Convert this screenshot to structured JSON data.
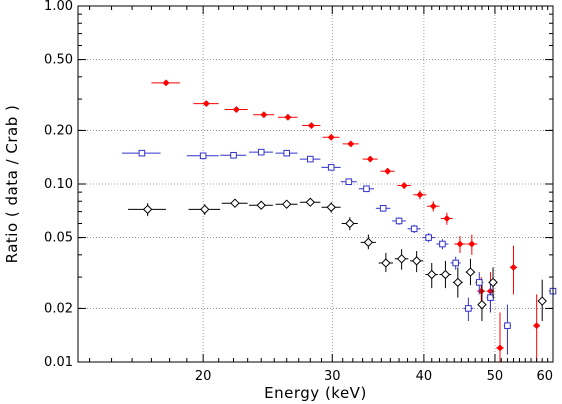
{
  "chart_data": {
    "type": "scatter",
    "xlabel": "Energy (keV)",
    "ylabel": "Ratio ( data / Crab )",
    "x_scale": "log",
    "y_scale": "log",
    "xlim": [
      13.5,
      60
    ],
    "ylim": [
      0.01,
      1.0
    ],
    "grid": true,
    "x_ticks": [
      {
        "value": 20,
        "label": "20"
      },
      {
        "value": 30,
        "label": "30"
      },
      {
        "value": 40,
        "label": "40"
      },
      {
        "value": 50,
        "label": "50"
      },
      {
        "value": 60,
        "label": "60"
      }
    ],
    "y_ticks": [
      {
        "value": 0.01,
        "label": "0.01"
      },
      {
        "value": 0.02,
        "label": "0.02"
      },
      {
        "value": 0.05,
        "label": "0.05"
      },
      {
        "value": 0.1,
        "label": "0.10"
      },
      {
        "value": 0.2,
        "label": "0.20"
      },
      {
        "value": 0.5,
        "label": "0.50"
      },
      {
        "value": 1.0,
        "label": "1.00"
      }
    ],
    "series": [
      {
        "marker": "filled-diamond",
        "color": "#ff0000",
        "points": [
          {
            "x": 17.8,
            "y": 0.37,
            "xerr": 0.8,
            "ylo": 0.36,
            "yhi": 0.38
          },
          {
            "x": 20.2,
            "y": 0.283,
            "xerr": 0.8,
            "ylo": 0.275,
            "yhi": 0.291
          },
          {
            "x": 22.2,
            "y": 0.262,
            "xerr": 0.8,
            "ylo": 0.255,
            "yhi": 0.269
          },
          {
            "x": 24.2,
            "y": 0.245,
            "xerr": 0.8,
            "ylo": 0.238,
            "yhi": 0.252
          },
          {
            "x": 26.1,
            "y": 0.237,
            "xerr": 0.8,
            "ylo": 0.23,
            "yhi": 0.244
          },
          {
            "x": 28.1,
            "y": 0.213,
            "xerr": 0.8,
            "ylo": 0.206,
            "yhi": 0.22
          },
          {
            "x": 29.9,
            "y": 0.183,
            "xerr": 0.8,
            "ylo": 0.177,
            "yhi": 0.189
          },
          {
            "x": 31.8,
            "y": 0.168,
            "xerr": 0.8,
            "ylo": 0.162,
            "yhi": 0.174
          },
          {
            "x": 33.8,
            "y": 0.138,
            "xerr": 0.8,
            "ylo": 0.133,
            "yhi": 0.143
          },
          {
            "x": 35.7,
            "y": 0.118,
            "xerr": 0.8,
            "ylo": 0.113,
            "yhi": 0.123
          },
          {
            "x": 37.6,
            "y": 0.098,
            "xerr": 0.8,
            "ylo": 0.094,
            "yhi": 0.102
          },
          {
            "x": 39.5,
            "y": 0.087,
            "xerr": 0.8,
            "ylo": 0.082,
            "yhi": 0.092
          },
          {
            "x": 41.2,
            "y": 0.075,
            "xerr": 0.8,
            "ylo": 0.07,
            "yhi": 0.08
          },
          {
            "x": 43.0,
            "y": 0.064,
            "xerr": 0.8,
            "ylo": 0.059,
            "yhi": 0.069
          },
          {
            "x": 44.8,
            "y": 0.046,
            "xerr": 0.8,
            "ylo": 0.041,
            "yhi": 0.051
          },
          {
            "x": 46.5,
            "y": 0.046,
            "xerr": 0.8,
            "ylo": 0.04,
            "yhi": 0.052
          },
          {
            "x": 47.9,
            "y": 0.025,
            "xerr": 0.6,
            "ylo": 0.021,
            "yhi": 0.03
          },
          {
            "x": 49.3,
            "y": 0.025,
            "xerr": 0.6,
            "ylo": 0.019,
            "yhi": 0.032
          },
          {
            "x": 50.8,
            "y": 0.012,
            "xerr": 0.6,
            "ylo": 0.008,
            "yhi": 0.019
          },
          {
            "x": 53.0,
            "y": 0.034,
            "xerr": 0.6,
            "ylo": 0.024,
            "yhi": 0.045
          },
          {
            "x": 57.0,
            "y": 0.016,
            "xerr": 0.6,
            "ylo": 0.01,
            "yhi": 0.024
          }
        ]
      },
      {
        "marker": "open-square",
        "color": "#3333cc",
        "points": [
          {
            "x": 16.5,
            "y": 0.149,
            "xerr": 1.0,
            "ylo": 0.146,
            "yhi": 0.152
          },
          {
            "x": 20.0,
            "y": 0.144,
            "xerr": 1.0,
            "ylo": 0.141,
            "yhi": 0.147
          },
          {
            "x": 22.0,
            "y": 0.145,
            "xerr": 0.9,
            "ylo": 0.142,
            "yhi": 0.148
          },
          {
            "x": 24.0,
            "y": 0.151,
            "xerr": 0.9,
            "ylo": 0.148,
            "yhi": 0.154
          },
          {
            "x": 26.0,
            "y": 0.149,
            "xerr": 0.9,
            "ylo": 0.146,
            "yhi": 0.152
          },
          {
            "x": 28.0,
            "y": 0.138,
            "xerr": 0.9,
            "ylo": 0.135,
            "yhi": 0.141
          },
          {
            "x": 29.9,
            "y": 0.124,
            "xerr": 0.9,
            "ylo": 0.121,
            "yhi": 0.127
          },
          {
            "x": 31.6,
            "y": 0.103,
            "xerr": 0.8,
            "ylo": 0.1,
            "yhi": 0.106
          },
          {
            "x": 33.4,
            "y": 0.094,
            "xerr": 0.8,
            "ylo": 0.091,
            "yhi": 0.097
          },
          {
            "x": 35.2,
            "y": 0.073,
            "xerr": 0.8,
            "ylo": 0.07,
            "yhi": 0.076
          },
          {
            "x": 37.0,
            "y": 0.062,
            "xerr": 0.8,
            "ylo": 0.059,
            "yhi": 0.065
          },
          {
            "x": 38.8,
            "y": 0.056,
            "xerr": 0.8,
            "ylo": 0.053,
            "yhi": 0.059
          },
          {
            "x": 40.6,
            "y": 0.05,
            "xerr": 0.8,
            "ylo": 0.047,
            "yhi": 0.053
          },
          {
            "x": 42.4,
            "y": 0.046,
            "xerr": 0.8,
            "ylo": 0.043,
            "yhi": 0.049
          },
          {
            "x": 44.2,
            "y": 0.036,
            "xerr": 0.7,
            "ylo": 0.033,
            "yhi": 0.039
          },
          {
            "x": 46.0,
            "y": 0.02,
            "xerr": 0.7,
            "ylo": 0.017,
            "yhi": 0.023
          },
          {
            "x": 47.6,
            "y": 0.028,
            "xerr": 0.6,
            "ylo": 0.024,
            "yhi": 0.032
          },
          {
            "x": 49.3,
            "y": 0.023,
            "xerr": 0.6,
            "ylo": 0.019,
            "yhi": 0.028
          },
          {
            "x": 52.0,
            "y": 0.016,
            "xerr": 0.6,
            "ylo": 0.011,
            "yhi": 0.021
          },
          {
            "x": 60.0,
            "y": 0.025,
            "xerr": 0.8,
            "ylo": 0.019,
            "yhi": 0.032
          }
        ]
      },
      {
        "marker": "open-diamond",
        "color": "#000000",
        "points": [
          {
            "x": 16.8,
            "y": 0.072,
            "xerr": 1.0,
            "ylo": 0.066,
            "yhi": 0.078
          },
          {
            "x": 20.1,
            "y": 0.072,
            "xerr": 1.0,
            "ylo": 0.067,
            "yhi": 0.077
          },
          {
            "x": 22.1,
            "y": 0.078,
            "xerr": 0.9,
            "ylo": 0.074,
            "yhi": 0.082
          },
          {
            "x": 24.0,
            "y": 0.076,
            "xerr": 0.9,
            "ylo": 0.072,
            "yhi": 0.08
          },
          {
            "x": 26.0,
            "y": 0.077,
            "xerr": 0.9,
            "ylo": 0.073,
            "yhi": 0.081
          },
          {
            "x": 28.0,
            "y": 0.079,
            "xerr": 0.9,
            "ylo": 0.075,
            "yhi": 0.083
          },
          {
            "x": 29.9,
            "y": 0.074,
            "xerr": 0.9,
            "ylo": 0.069,
            "yhi": 0.079
          },
          {
            "x": 31.7,
            "y": 0.06,
            "xerr": 0.8,
            "ylo": 0.055,
            "yhi": 0.065
          },
          {
            "x": 33.6,
            "y": 0.047,
            "xerr": 0.8,
            "ylo": 0.043,
            "yhi": 0.052
          },
          {
            "x": 35.5,
            "y": 0.036,
            "xerr": 0.8,
            "ylo": 0.032,
            "yhi": 0.041
          },
          {
            "x": 37.3,
            "y": 0.038,
            "xerr": 0.8,
            "ylo": 0.033,
            "yhi": 0.043
          },
          {
            "x": 39.1,
            "y": 0.037,
            "xerr": 0.8,
            "ylo": 0.032,
            "yhi": 0.042
          },
          {
            "x": 41.0,
            "y": 0.031,
            "xerr": 0.8,
            "ylo": 0.026,
            "yhi": 0.036
          },
          {
            "x": 42.8,
            "y": 0.031,
            "xerr": 0.8,
            "ylo": 0.026,
            "yhi": 0.037
          },
          {
            "x": 44.5,
            "y": 0.028,
            "xerr": 0.7,
            "ylo": 0.023,
            "yhi": 0.034
          },
          {
            "x": 46.3,
            "y": 0.032,
            "xerr": 0.7,
            "ylo": 0.027,
            "yhi": 0.038
          },
          {
            "x": 48.0,
            "y": 0.021,
            "xerr": 0.6,
            "ylo": 0.017,
            "yhi": 0.027
          },
          {
            "x": 49.7,
            "y": 0.028,
            "xerr": 0.7,
            "ylo": 0.023,
            "yhi": 0.034
          },
          {
            "x": 58.0,
            "y": 0.022,
            "xerr": 0.8,
            "ylo": 0.017,
            "yhi": 0.029
          }
        ]
      }
    ]
  }
}
